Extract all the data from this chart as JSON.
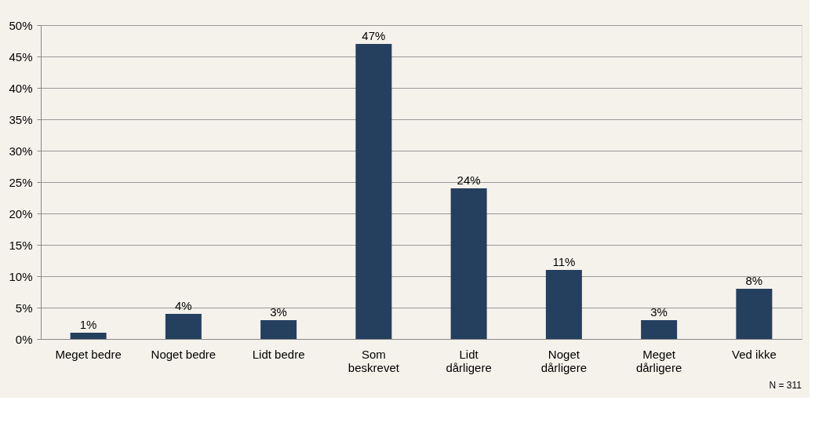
{
  "chart_data": {
    "type": "bar",
    "categories": [
      "Meget bedre",
      "Noget bedre",
      "Lidt bedre",
      "Som beskrevet",
      "Lidt dårligere",
      "Noget dårligere",
      "Meget dårligere",
      "Ved ikke"
    ],
    "values": [
      1,
      4,
      3,
      47,
      24,
      11,
      3,
      8
    ],
    "value_labels": [
      "1%",
      "4%",
      "3%",
      "47%",
      "24%",
      "11%",
      "3%",
      "8%"
    ],
    "color": "#253f5f",
    "ylim": [
      0,
      50
    ],
    "yticks": [
      {
        "value": 0,
        "label": "0%"
      },
      {
        "value": 5,
        "label": "5%"
      },
      {
        "value": 10,
        "label": "10%"
      },
      {
        "value": 15,
        "label": "15%"
      },
      {
        "value": 20,
        "label": "20%"
      },
      {
        "value": 25,
        "label": "25%"
      },
      {
        "value": 30,
        "label": "30%"
      },
      {
        "value": 35,
        "label": "35%"
      },
      {
        "value": 40,
        "label": "40%"
      },
      {
        "value": 45,
        "label": "45%"
      },
      {
        "value": 50,
        "label": "50%"
      }
    ],
    "grid": "y",
    "annotations": [
      "N = 311"
    ]
  }
}
